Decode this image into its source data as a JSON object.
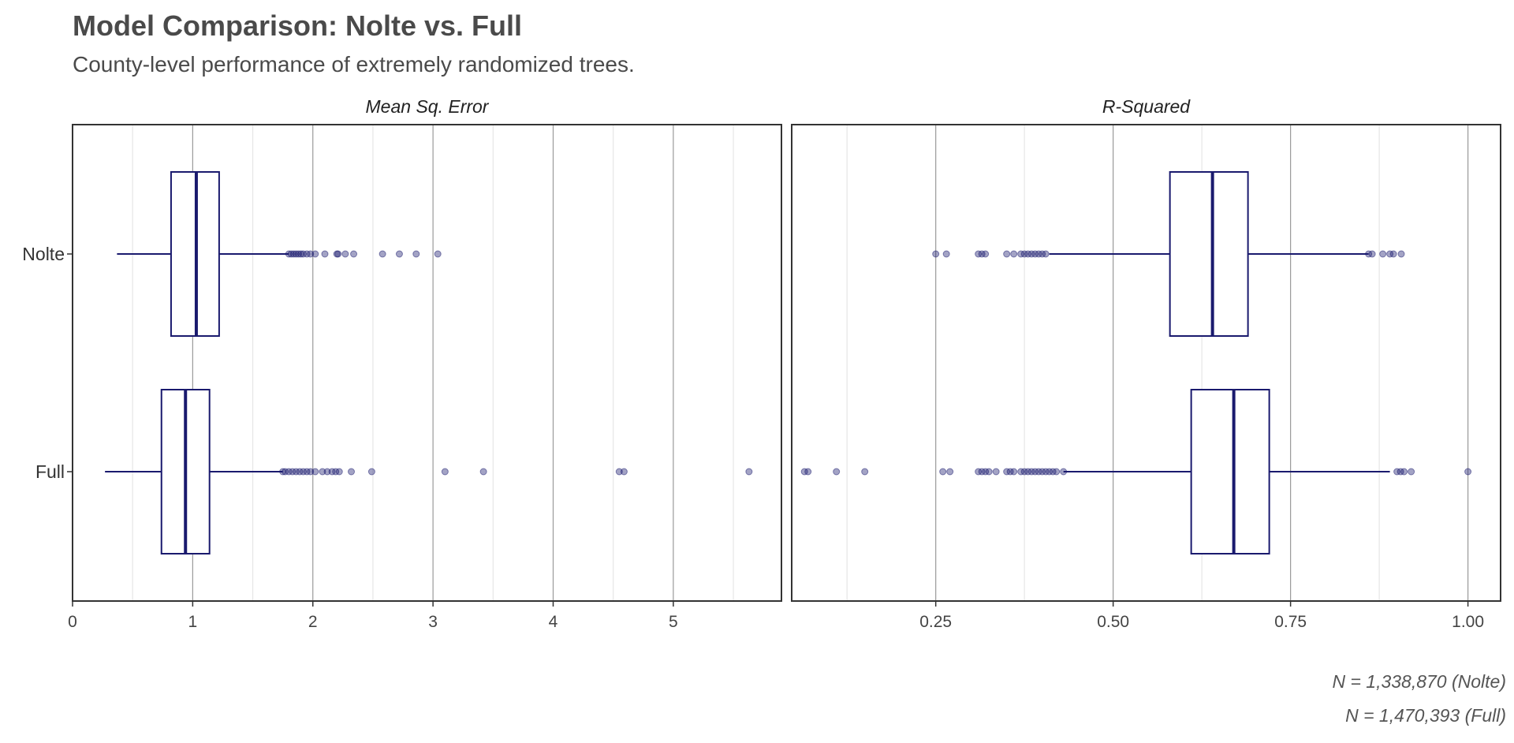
{
  "title": "Model Comparison: Nolte vs. Full",
  "subtitle": "County-level performance of extremely randomized trees.",
  "caption_lines": [
    "N = 1,338,870 (Nolte)",
    "N = 1,470,393 (Full)"
  ],
  "colors": {
    "box": "#1a1a6e",
    "point": "#1a1a6e",
    "grid_major": "#999999",
    "grid_minor": "#e6e6e6",
    "panel_border": "#333333",
    "text": "#4a4a4a"
  },
  "chart_data": [
    {
      "type": "boxplot",
      "panel": "Mean Sq. Error",
      "orientation": "horizontal",
      "categories": [
        "Nolte",
        "Full"
      ],
      "xlim": [
        0,
        5.9
      ],
      "x_ticks": [
        0,
        1,
        2,
        3,
        4,
        5
      ],
      "x_tick_labels": [
        "0",
        "1",
        "2",
        "3",
        "4",
        "5"
      ],
      "x_minor": [
        0.5,
        1.5,
        2.5,
        3.5,
        4.5,
        5.5
      ],
      "grid": true,
      "series": [
        {
          "category": "Nolte",
          "whisker_low": 0.37,
          "q1": 0.82,
          "median": 1.03,
          "q3": 1.22,
          "whisker_high": 1.8,
          "outliers": [
            1.8,
            1.82,
            1.84,
            1.86,
            1.88,
            1.9,
            1.92,
            1.95,
            1.98,
            2.02,
            2.1,
            2.2,
            2.21,
            2.27,
            2.34,
            2.58,
            2.72,
            2.86,
            3.04
          ]
        },
        {
          "category": "Full",
          "whisker_low": 0.27,
          "q1": 0.74,
          "median": 0.94,
          "q3": 1.14,
          "whisker_high": 1.75,
          "outliers": [
            1.75,
            1.77,
            1.8,
            1.83,
            1.86,
            1.89,
            1.92,
            1.95,
            1.98,
            2.02,
            2.08,
            2.12,
            2.16,
            2.19,
            2.22,
            2.32,
            2.49,
            3.1,
            3.42,
            4.55,
            4.59,
            5.63
          ]
        }
      ]
    },
    {
      "type": "boxplot",
      "panel": "R-Squared",
      "orientation": "horizontal",
      "categories": [
        "Nolte",
        "Full"
      ],
      "xlim": [
        0.047,
        1.046
      ],
      "x_ticks": [
        0.25,
        0.5,
        0.75,
        1.0
      ],
      "x_tick_labels": [
        "0.25",
        "0.50",
        "0.75",
        "1.00"
      ],
      "x_minor": [
        0.125,
        0.375,
        0.625,
        0.875
      ],
      "grid": true,
      "series": [
        {
          "category": "Nolte",
          "whisker_low": 0.41,
          "q1": 0.58,
          "median": 0.64,
          "q3": 0.69,
          "whisker_high": 0.86,
          "outliers": [
            0.25,
            0.265,
            0.31,
            0.315,
            0.32,
            0.35,
            0.36,
            0.37,
            0.375,
            0.38,
            0.385,
            0.39,
            0.395,
            0.4,
            0.405,
            0.86,
            0.865,
            0.88,
            0.89,
            0.895,
            0.906
          ]
        },
        {
          "category": "Full",
          "whisker_low": 0.43,
          "q1": 0.61,
          "median": 0.67,
          "q3": 0.72,
          "whisker_high": 0.89,
          "outliers": [
            0.065,
            0.07,
            0.11,
            0.15,
            0.26,
            0.27,
            0.31,
            0.315,
            0.32,
            0.325,
            0.335,
            0.35,
            0.355,
            0.36,
            0.37,
            0.375,
            0.38,
            0.385,
            0.39,
            0.395,
            0.4,
            0.405,
            0.41,
            0.415,
            0.42,
            0.43,
            0.9,
            0.905,
            0.91,
            0.92,
            1.0
          ]
        }
      ]
    }
  ]
}
